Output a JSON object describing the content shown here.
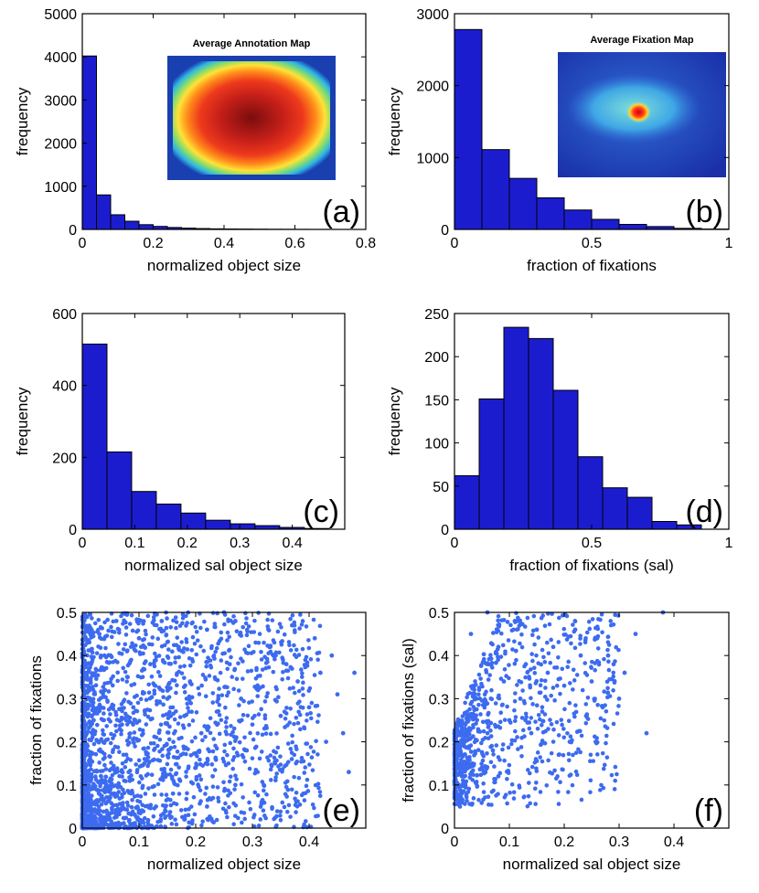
{
  "chart_data": [
    {
      "id": "a",
      "type": "bar",
      "panel_label": "(a)",
      "xlabel": "normalized object size",
      "ylabel": "frequency",
      "xlim": [
        0,
        0.8
      ],
      "ylim": [
        0,
        5000
      ],
      "xticks": [
        0,
        0.2,
        0.4,
        0.6,
        0.8
      ],
      "xtick_labels": [
        "0",
        "0.2",
        "0.4",
        "0.6",
        "0.8"
      ],
      "yticks": [
        0,
        1000,
        2000,
        3000,
        4000,
        5000
      ],
      "ytick_labels": [
        "0",
        "1000",
        "2000",
        "3000",
        "4000",
        "5000"
      ],
      "bin_width": 0.04,
      "x": [
        0.02,
        0.06,
        0.1,
        0.14,
        0.18,
        0.22,
        0.26,
        0.3,
        0.34,
        0.38,
        0.42,
        0.46,
        0.5,
        0.54,
        0.58,
        0.62,
        0.66,
        0.7
      ],
      "values": [
        4020,
        800,
        340,
        190,
        110,
        70,
        45,
        30,
        20,
        14,
        10,
        8,
        6,
        4,
        3,
        2,
        1,
        1
      ],
      "inset": {
        "title": "Average Annotation Map",
        "kind": "annotation"
      }
    },
    {
      "id": "b",
      "type": "bar",
      "panel_label": "(b)",
      "xlabel": "fraction of fixations",
      "ylabel": "frequency",
      "xlim": [
        0,
        1
      ],
      "ylim": [
        0,
        3000
      ],
      "xticks": [
        0,
        0.5,
        1
      ],
      "xtick_labels": [
        "0",
        "0.5",
        "1"
      ],
      "yticks": [
        0,
        1000,
        2000,
        3000
      ],
      "ytick_labels": [
        "0",
        "1000",
        "2000",
        "3000"
      ],
      "bin_width": 0.1,
      "x": [
        0.05,
        0.15,
        0.25,
        0.35,
        0.45,
        0.55,
        0.65,
        0.75,
        0.85,
        0.95
      ],
      "values": [
        2780,
        1110,
        710,
        440,
        270,
        140,
        70,
        40,
        15,
        5
      ],
      "inset": {
        "title": "Average Fixation Map",
        "kind": "fixation"
      }
    },
    {
      "id": "c",
      "type": "bar",
      "panel_label": "(c)",
      "xlabel": "normalized sal object size",
      "ylabel": "frequency",
      "xlim": [
        0,
        0.5
      ],
      "ylim": [
        0,
        600
      ],
      "xticks": [
        0,
        0.1,
        0.2,
        0.3,
        0.4
      ],
      "xtick_labels": [
        "0",
        "0.1",
        "0.2",
        "0.3",
        "0.4"
      ],
      "yticks": [
        0,
        200,
        400,
        600
      ],
      "ytick_labels": [
        "0",
        "200",
        "400",
        "600"
      ],
      "bin_width": 0.047,
      "x": [
        0.0235,
        0.0705,
        0.1175,
        0.1645,
        0.2115,
        0.2585,
        0.3055,
        0.3525,
        0.3995,
        0.4465
      ],
      "values": [
        515,
        215,
        105,
        70,
        45,
        25,
        15,
        10,
        5,
        2
      ]
    },
    {
      "id": "d",
      "type": "bar",
      "panel_label": "(d)",
      "xlabel": "fraction of fixations (sal)",
      "ylabel": "frequency",
      "xlim": [
        0,
        1
      ],
      "ylim": [
        0,
        250
      ],
      "xticks": [
        0,
        0.5,
        1
      ],
      "xtick_labels": [
        "0",
        "0.5",
        "1"
      ],
      "yticks": [
        0,
        50,
        100,
        150,
        200,
        250
      ],
      "ytick_labels": [
        "0",
        "50",
        "100",
        "150",
        "200",
        "250"
      ],
      "bin_width": 0.09,
      "x": [
        0.045,
        0.135,
        0.225,
        0.315,
        0.405,
        0.495,
        0.585,
        0.675,
        0.765,
        0.855
      ],
      "values": [
        62,
        151,
        234,
        221,
        161,
        84,
        48,
        37,
        9,
        5
      ]
    },
    {
      "id": "e",
      "type": "scatter",
      "panel_label": "(e)",
      "xlabel": "normalized object size",
      "ylabel": "fraction of fixations",
      "xlim": [
        0,
        0.5
      ],
      "ylim": [
        0,
        0.5
      ],
      "xticks": [
        0,
        0.1,
        0.2,
        0.3,
        0.4
      ],
      "xtick_labels": [
        "0",
        "0.1",
        "0.2",
        "0.3",
        "0.4"
      ],
      "yticks": [
        0,
        0.1,
        0.2,
        0.3,
        0.4,
        0.5
      ],
      "ytick_labels": [
        "0",
        "0.1",
        "0.2",
        "0.3",
        "0.4",
        "0.5"
      ],
      "color": "#3d6bf0",
      "points": [
        [
          0.38,
          0.34
        ],
        [
          0.4,
          0.28
        ],
        [
          0.42,
          0.36
        ],
        [
          0.44,
          0.4
        ],
        [
          0.43,
          0.2
        ],
        [
          0.48,
          0.36
        ],
        [
          0.35,
          0.26
        ],
        [
          0.33,
          0.42
        ],
        [
          0.3,
          0.24
        ],
        [
          0.31,
          0.32
        ],
        [
          0.29,
          0.18
        ],
        [
          0.27,
          0.1
        ],
        [
          0.26,
          0.38
        ],
        [
          0.25,
          0.5
        ],
        [
          0.24,
          0.3
        ],
        [
          0.22,
          0.46
        ],
        [
          0.21,
          0.22
        ],
        [
          0.2,
          0.14
        ],
        [
          0.19,
          0.34
        ],
        [
          0.18,
          0.26
        ],
        [
          0.17,
          0.42
        ],
        [
          0.16,
          0.08
        ],
        [
          0.15,
          0.3
        ],
        [
          0.14,
          0.48
        ],
        [
          0.13,
          0.05
        ],
        [
          0.12,
          0.38
        ],
        [
          0.11,
          0.16
        ],
        [
          0.1,
          0.44
        ],
        [
          0.09,
          0.28
        ],
        [
          0.08,
          0.35
        ],
        [
          0.07,
          0.24
        ],
        [
          0.06,
          0.48
        ],
        [
          0.05,
          0.4
        ],
        [
          0.04,
          0.32
        ],
        [
          0.03,
          0.45
        ],
        [
          0.02,
          0.25
        ],
        [
          0.36,
          0.38
        ],
        [
          0.34,
          0.15
        ],
        [
          0.28,
          0.3
        ],
        [
          0.23,
          0.12
        ],
        [
          0.32,
          0.1
        ],
        [
          0.46,
          0.22
        ],
        [
          0.37,
          0.47
        ],
        [
          0.41,
          0.44
        ],
        [
          0.39,
          0.08
        ],
        [
          0.45,
          0.31
        ],
        [
          0.47,
          0.13
        ],
        [
          0.22,
          0.05
        ],
        [
          0.18,
          0.02
        ],
        [
          0.27,
          0.48
        ]
      ]
    },
    {
      "id": "f",
      "type": "scatter",
      "panel_label": "(f)",
      "xlabel": "normalized sal object size",
      "ylabel": "fraction of fixations (sal)",
      "xlim": [
        0,
        0.5
      ],
      "ylim": [
        0,
        0.5
      ],
      "xticks": [
        0,
        0.1,
        0.2,
        0.3,
        0.4
      ],
      "xtick_labels": [
        "0",
        "0.1",
        "0.2",
        "0.3",
        "0.4"
      ],
      "yticks": [
        0,
        0.1,
        0.2,
        0.3,
        0.4,
        0.5
      ],
      "ytick_labels": [
        "0",
        "0.1",
        "0.2",
        "0.3",
        "0.4",
        "0.5"
      ],
      "color": "#3d6bf0",
      "points": [
        [
          0.38,
          0.5
        ],
        [
          0.35,
          0.22
        ],
        [
          0.31,
          0.36
        ],
        [
          0.3,
          0.3
        ],
        [
          0.29,
          0.38
        ],
        [
          0.28,
          0.4
        ],
        [
          0.26,
          0.44
        ],
        [
          0.24,
          0.26
        ],
        [
          0.22,
          0.46
        ],
        [
          0.21,
          0.2
        ],
        [
          0.2,
          0.33
        ],
        [
          0.19,
          0.17
        ],
        [
          0.18,
          0.42
        ],
        [
          0.17,
          0.36
        ],
        [
          0.16,
          0.27
        ],
        [
          0.15,
          0.46
        ],
        [
          0.14,
          0.22
        ],
        [
          0.13,
          0.38
        ],
        [
          0.12,
          0.3
        ],
        [
          0.11,
          0.48
        ],
        [
          0.1,
          0.25
        ],
        [
          0.09,
          0.34
        ],
        [
          0.08,
          0.42
        ],
        [
          0.07,
          0.18
        ],
        [
          0.06,
          0.38
        ],
        [
          0.05,
          0.14
        ],
        [
          0.04,
          0.3
        ],
        [
          0.03,
          0.45
        ],
        [
          0.02,
          0.24
        ],
        [
          0.01,
          0.05
        ],
        [
          0.25,
          0.34
        ],
        [
          0.23,
          0.4
        ],
        [
          0.27,
          0.28
        ],
        [
          0.33,
          0.45
        ],
        [
          0.06,
          0.5
        ],
        [
          0.08,
          0.12
        ]
      ]
    }
  ]
}
